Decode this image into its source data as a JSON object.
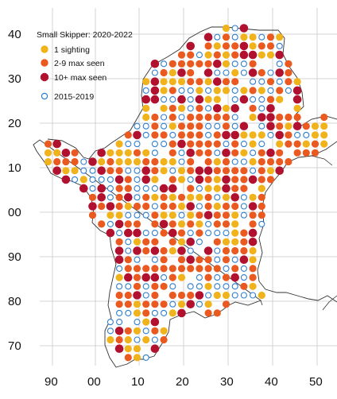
{
  "map": {
    "legend": {
      "title": "Small Skipper:  2020-2022",
      "items": [
        {
          "label": "1 sighting",
          "color": "#f0b31c",
          "style": "filled"
        },
        {
          "label": "2-9 max seen",
          "color": "#ea5a20",
          "style": "filled"
        },
        {
          "label": "10+ max seen",
          "color": "#b1102e",
          "style": "filled"
        },
        {
          "label": "2015-2019",
          "color": "#2f7fd0",
          "style": "hollow"
        }
      ]
    },
    "y_ticks": [
      "40",
      "30",
      "20",
      "10",
      "00",
      "90",
      "80",
      "70"
    ],
    "x_ticks": [
      "90",
      "00",
      "10",
      "20",
      "30",
      "40",
      "50"
    ],
    "colors": {
      "background": "#ffffff",
      "gridline": "#c8c8c8",
      "boundary": "#333333",
      "one_sighting": "#f0b31c",
      "two_to_nine": "#ea5a20",
      "ten_plus": "#b1102e",
      "previous_records": "#2f7fd0"
    }
  }
}
